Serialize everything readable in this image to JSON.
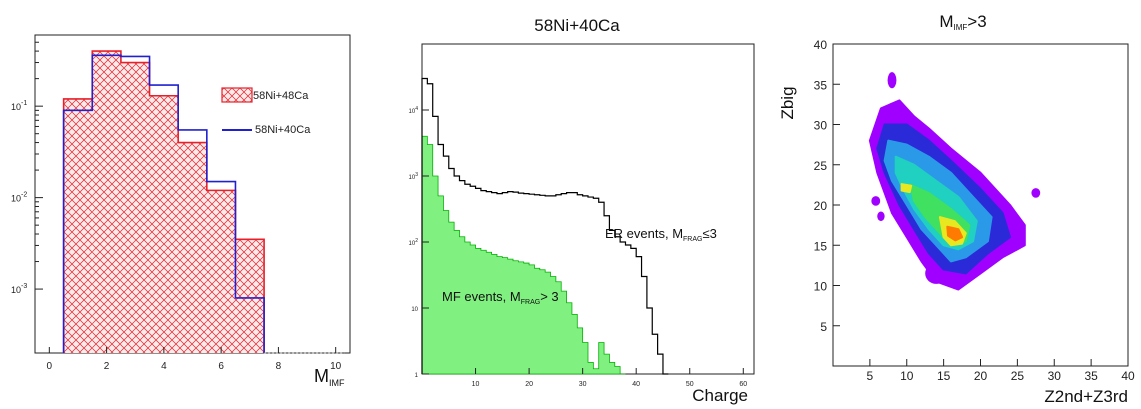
{
  "chart_data": [
    {
      "type": "histogram",
      "xlabel": "M",
      "xlabel_sub": "IMF",
      "ylog": true,
      "xlim": [
        -0.5,
        10.5
      ],
      "ylim": [
        0.0002,
        0.6
      ],
      "x_ticks": [
        "0",
        "2",
        "4",
        "6",
        "8",
        "10"
      ],
      "y_ticks": [
        {
          "base": "10",
          "exp": "-1",
          "value": 0.1
        },
        {
          "base": "10",
          "exp": "-2",
          "value": 0.01
        },
        {
          "base": "10",
          "exp": "-3",
          "value": 0.001
        }
      ],
      "bin_edges": [
        0.5,
        1.5,
        2.5,
        3.5,
        4.5,
        5.5,
        6.5,
        7.5
      ],
      "series": [
        {
          "name": "58Ni+48Ca",
          "color": "#e8202a",
          "fill": "hatch",
          "values": [
            0.12,
            0.4,
            0.3,
            0.13,
            0.04,
            0.012,
            0.0035
          ]
        },
        {
          "name": "58Ni+40Ca",
          "color": "#2020d0",
          "fill": "none",
          "values": [
            0.09,
            0.36,
            0.35,
            0.17,
            0.055,
            0.015,
            0.0008
          ]
        }
      ]
    },
    {
      "type": "histogram",
      "title": "58Ni+40Ca",
      "xlabel": "Charge",
      "ylog": true,
      "xlim": [
        0,
        62
      ],
      "ylim": [
        1,
        100000
      ],
      "x_ticks": [
        "10",
        "20",
        "30",
        "40",
        "50",
        "60"
      ],
      "y_ticks": [
        {
          "label": "10",
          "sup": "4",
          "value": 10000
        },
        {
          "label": "10",
          "sup": "3",
          "value": 1000
        },
        {
          "label": "10",
          "sup": "2",
          "value": 100
        },
        {
          "label": "10",
          "value": 10
        },
        {
          "label": "1",
          "value": 1
        }
      ],
      "series": [
        {
          "name": "ER events",
          "color": "#000000",
          "fill": "none",
          "x_start": 0,
          "bin_width": 1,
          "values": [
            30000,
            25000,
            8000,
            3000,
            2000,
            1300,
            1000,
            850,
            750,
            700,
            650,
            600,
            580,
            560,
            540,
            560,
            580,
            570,
            550,
            540,
            530,
            520,
            510,
            500,
            500,
            520,
            540,
            560,
            560,
            520,
            500,
            480,
            460,
            400,
            250,
            150,
            120,
            100,
            90,
            80,
            60,
            30,
            10,
            4,
            2,
            1
          ]
        },
        {
          "name": "MF events",
          "color": "#00b000",
          "fillcolor": "#80f080",
          "fill": "solid",
          "x_start": 0,
          "bin_width": 1,
          "values": [
            4000,
            3000,
            1000,
            500,
            300,
            200,
            150,
            120,
            100,
            90,
            80,
            75,
            70,
            65,
            60,
            58,
            55,
            52,
            50,
            48,
            45,
            40,
            38,
            35,
            30,
            25,
            18,
            12,
            8,
            5,
            3,
            1.5,
            1.2,
            3,
            2,
            1.5,
            1.3,
            1
          ]
        }
      ],
      "annotations": [
        {
          "text": "ER events, M",
          "sub": "FRAG",
          "suffix": "≤3"
        },
        {
          "text": "MF events, M",
          "sub": "FRAG",
          "suffix": "> 3"
        }
      ]
    },
    {
      "type": "heatmap",
      "title": "M",
      "title_sub": "IMF",
      "title_suffix": ">3",
      "xlabel": "Z2nd+Z3rd",
      "ylabel": "Zbig",
      "xlim": [
        0,
        40
      ],
      "ylim": [
        0,
        40
      ],
      "x_ticks": [
        "5",
        "10",
        "15",
        "20",
        "25",
        "30",
        "35",
        "40"
      ],
      "y_ticks": [
        "5",
        "10",
        "15",
        "20",
        "25",
        "30",
        "35",
        "40"
      ],
      "colors": [
        "#a000ff",
        "#2a2ad8",
        "#2a9ae8",
        "#20d0c0",
        "#40e060",
        "#e8e820",
        "#ff7a00",
        "#e01010"
      ],
      "levels": [
        {
          "level": 1,
          "polygon": [
            [
              6.5,
              32
            ],
            [
              9,
              33
            ],
            [
              11,
              31
            ],
            [
              13,
              29.5
            ],
            [
              16,
              27
            ],
            [
              20,
              24
            ],
            [
              24,
              20
            ],
            [
              26,
              17.5
            ],
            [
              26,
              15
            ],
            [
              23,
              13.5
            ],
            [
              20,
              11.5
            ],
            [
              17,
              9.5
            ],
            [
              14,
              10.5
            ],
            [
              12,
              13
            ],
            [
              10,
              16
            ],
            [
              8,
              19
            ],
            [
              6,
              24
            ],
            [
              5,
              28
            ]
          ]
        },
        {
          "level": 2,
          "polygon": [
            [
              7,
              30
            ],
            [
              10,
              30
            ],
            [
              13,
              28
            ],
            [
              16,
              25.5
            ],
            [
              20,
              22
            ],
            [
              23,
              19
            ],
            [
              24,
              16
            ],
            [
              21,
              14
            ],
            [
              18,
              11.5
            ],
            [
              15,
              12
            ],
            [
              13,
              14
            ],
            [
              11,
              17
            ],
            [
              9,
              20
            ],
            [
              7,
              24
            ],
            [
              6,
              27
            ]
          ]
        },
        {
          "level": 3,
          "polygon": [
            [
              7.5,
              28
            ],
            [
              10,
              27.5
            ],
            [
              13,
              26
            ],
            [
              16,
              24
            ],
            [
              19,
              21
            ],
            [
              21.5,
              18.5
            ],
            [
              21,
              15.5
            ],
            [
              18,
              13.5
            ],
            [
              16,
              13
            ],
            [
              14,
              15
            ],
            [
              12,
              17
            ],
            [
              10,
              20
            ],
            [
              8,
              23
            ],
            [
              7,
              25.5
            ]
          ]
        },
        {
          "level": 4,
          "polygon": [
            [
              8.5,
              26
            ],
            [
              11,
              25
            ],
            [
              14,
              23
            ],
            [
              17,
              21
            ],
            [
              19.5,
              18
            ],
            [
              19,
              15.5
            ],
            [
              17,
              14.5
            ],
            [
              15,
              15
            ],
            [
              13,
              17
            ],
            [
              11,
              19.5
            ],
            [
              9.5,
              22
            ],
            [
              8.5,
              24
            ]
          ]
        },
        {
          "level": 5,
          "polygon": [
            [
              10.5,
              22.5
            ],
            [
              13,
              21.5
            ],
            [
              16,
              19.5
            ],
            [
              18.5,
              17.5
            ],
            [
              18,
              15.5
            ],
            [
              16,
              15
            ],
            [
              14.5,
              16.5
            ],
            [
              12.5,
              18.5
            ],
            [
              11,
              20.5
            ]
          ]
        },
        {
          "level": 6,
          "polygon": [
            [
              14.5,
              18.5
            ],
            [
              16.5,
              18
            ],
            [
              18,
              16.5
            ],
            [
              17.5,
              15.2
            ],
            [
              16,
              15
            ],
            [
              15,
              16
            ]
          ]
        },
        {
          "level": 7,
          "polygon": [
            [
              15.5,
              17.3
            ],
            [
              17,
              17
            ],
            [
              17.5,
              16
            ],
            [
              16.6,
              15.6
            ],
            [
              15.6,
              16.2
            ]
          ]
        },
        {
          "level": 6,
          "polygon": [
            [
              9.3,
              22.6
            ],
            [
              10.6,
              22.4
            ],
            [
              10.4,
              21.6
            ],
            [
              9.3,
              21.8
            ]
          ]
        }
      ],
      "islands": [
        {
          "level": 1,
          "center": [
            8,
            35.5
          ],
          "r": [
            0.6,
            1.0
          ]
        },
        {
          "level": 1,
          "center": [
            5.8,
            20.5
          ],
          "r": [
            0.6,
            0.6
          ]
        },
        {
          "level": 1,
          "center": [
            6.5,
            18.6
          ],
          "r": [
            0.5,
            0.6
          ]
        },
        {
          "level": 1,
          "center": [
            27.5,
            21.5
          ],
          "r": [
            0.6,
            0.6
          ]
        },
        {
          "level": 1,
          "center": [
            14,
            11.5
          ],
          "r": [
            1.5,
            1.3
          ]
        }
      ]
    }
  ],
  "legend": {
    "entries": [
      "58Ni+48Ca",
      "58Ni+40Ca"
    ]
  }
}
